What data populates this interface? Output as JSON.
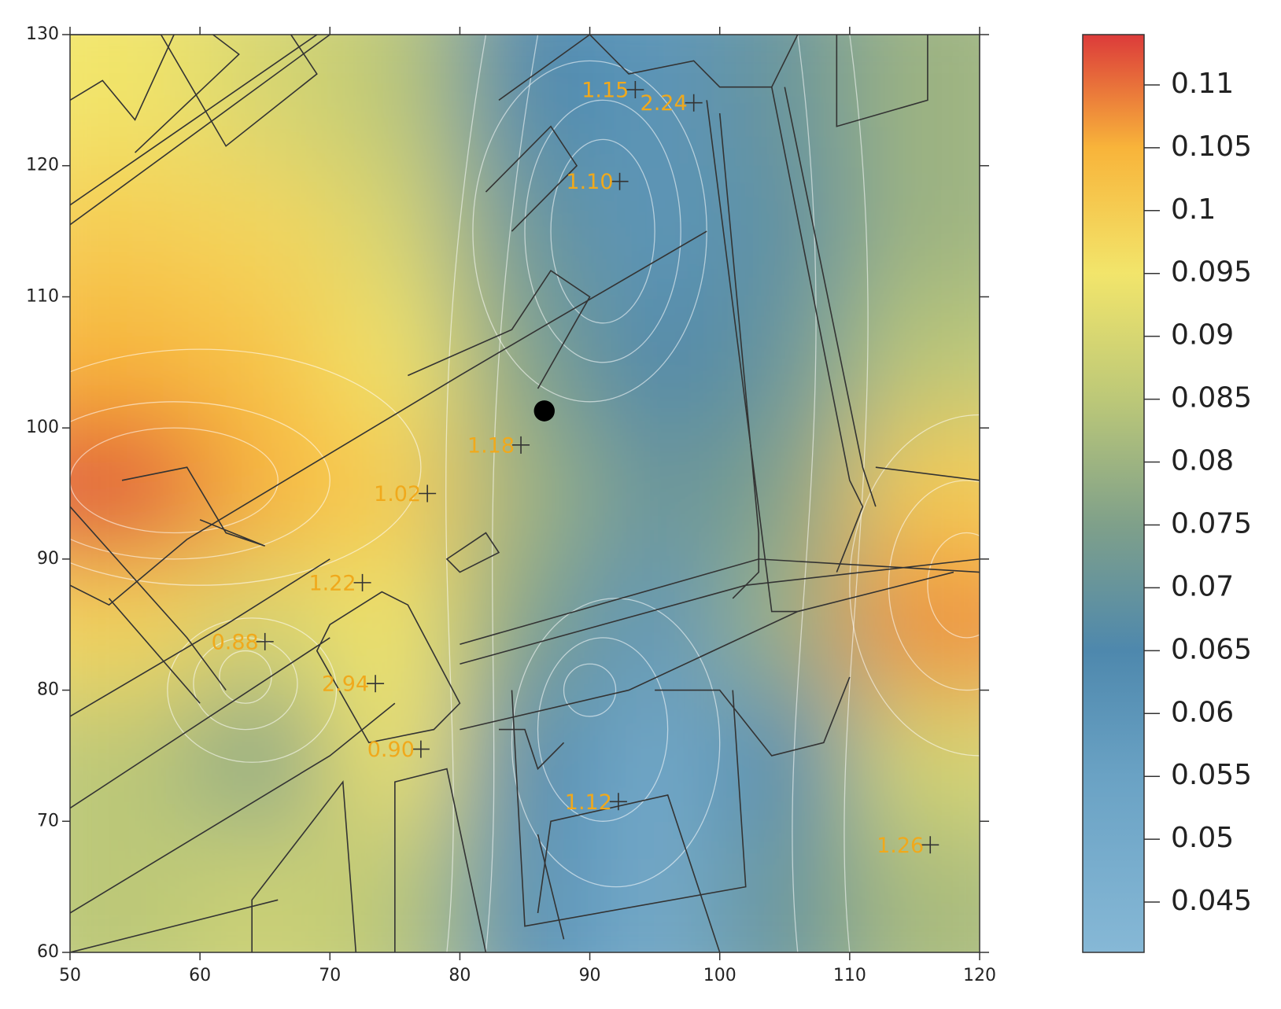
{
  "chart_data": {
    "type": "heatmap",
    "xlim": [
      50,
      120
    ],
    "ylim": [
      60,
      130
    ],
    "xticks": [
      50,
      60,
      70,
      80,
      90,
      100,
      110,
      120
    ],
    "yticks": [
      60,
      70,
      80,
      90,
      100,
      110,
      120,
      130
    ],
    "x": [
      55,
      65,
      75,
      85,
      95,
      105,
      115
    ],
    "y": [
      125,
      115,
      105,
      95,
      85,
      75,
      65
    ],
    "z": [
      [
        0.095,
        0.09,
        0.085,
        0.065,
        0.06,
        0.07,
        0.08
      ],
      [
        0.1,
        0.098,
        0.09,
        0.07,
        0.06,
        0.068,
        0.08
      ],
      [
        0.105,
        0.102,
        0.095,
        0.075,
        0.065,
        0.07,
        0.085
      ],
      [
        0.113,
        0.105,
        0.1,
        0.08,
        0.07,
        0.075,
        0.1
      ],
      [
        0.098,
        0.09,
        0.095,
        0.075,
        0.06,
        0.08,
        0.108
      ],
      [
        0.085,
        0.075,
        0.095,
        0.065,
        0.05,
        0.065,
        0.09
      ],
      [
        0.085,
        0.088,
        0.085,
        0.062,
        0.05,
        0.07,
        0.082
      ]
    ],
    "zlim": [
      0.041,
      0.114
    ],
    "zticks": [
      0.045,
      0.05,
      0.055,
      0.06,
      0.065,
      0.07,
      0.075,
      0.08,
      0.085,
      0.09,
      0.095,
      0.1,
      0.105,
      0.11
    ],
    "colorscale": [
      [
        0.041,
        "#86b8d6"
      ],
      [
        0.055,
        "#6aa2c4"
      ],
      [
        0.065,
        "#4e88ad"
      ],
      [
        0.075,
        "#7fa08a"
      ],
      [
        0.085,
        "#bcc878"
      ],
      [
        0.095,
        "#f2e56b"
      ],
      [
        0.105,
        "#f8b43a"
      ],
      [
        0.114,
        "#dc3b3a"
      ]
    ],
    "points": {
      "x": [
        93.5,
        98,
        92.3,
        84.7,
        77.5,
        72.5,
        65,
        73.5,
        77,
        92.2,
        116.2
      ],
      "y": [
        125.8,
        124.8,
        118.8,
        98.7,
        95,
        88.2,
        83.7,
        80.5,
        75.5,
        71.5,
        68.2
      ],
      "values": [
        1.15,
        2.24,
        1.1,
        1.18,
        1.02,
        1.22,
        0.88,
        2.94,
        0.9,
        1.12,
        1.26
      ],
      "value_labels": [
        "1.15",
        "2.24",
        "1.10",
        "1.18",
        "1.02",
        "1.22",
        "0.88",
        "2.94",
        "0.90",
        "1.12",
        "1.26"
      ]
    }
  }
}
